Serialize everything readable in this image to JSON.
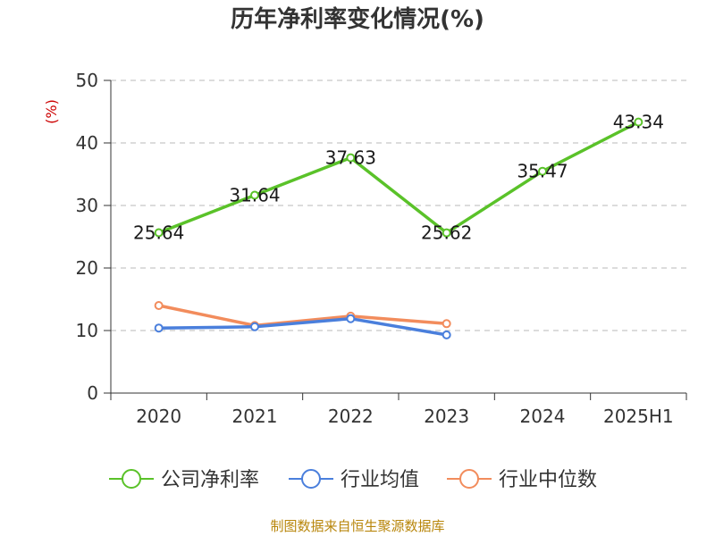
{
  "chart_data": {
    "type": "line",
    "title": "历年净利率变化情况(%)",
    "ylabel": "(%)",
    "categories": [
      "2020",
      "2021",
      "2022",
      "2023",
      "2024",
      "2025H1"
    ],
    "ylim": [
      0,
      50
    ],
    "yticks": [
      "0",
      "10",
      "20",
      "30",
      "40",
      "50"
    ],
    "grid": true,
    "legend_position": "bottom",
    "series": [
      {
        "name": "公司净利率",
        "color": "#5ac229",
        "values": [
          25.64,
          31.64,
          37.63,
          25.62,
          35.47,
          43.34
        ],
        "labels": [
          "25.64",
          "31.64",
          "37.63",
          "25.62",
          "35.47",
          "43.34"
        ]
      },
      {
        "name": "行业均值",
        "color": "#4a7fdc",
        "values": [
          10.4,
          10.6,
          11.9,
          9.3,
          null,
          null
        ]
      },
      {
        "name": "行业中位数",
        "color": "#f28c5c",
        "values": [
          14.0,
          10.8,
          12.3,
          11.1,
          null,
          null
        ]
      }
    ],
    "source": "制图数据来自恒生聚源数据库"
  }
}
